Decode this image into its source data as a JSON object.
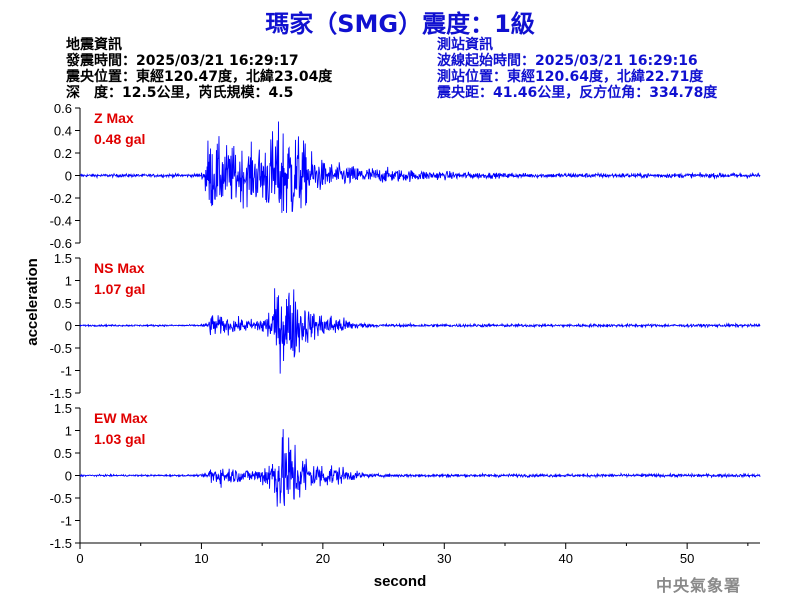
{
  "title": "瑪家（SMG）震度：1級",
  "quake_info": {
    "header": "地震資訊",
    "time": "發震時間：2025/03/21 16:29:17",
    "epicenter": "震央位置：東經120.47度，北緯23.04度",
    "depth_mag": "深　度：12.5公里，芮氏規模：4.5"
  },
  "station_info": {
    "header": "測站資訊",
    "wave_start": "波線起始時間：2025/03/21 16:29:16",
    "location": "測站位置：東經120.64度，北緯22.71度",
    "distance": "震央距：41.46公里，反方位角：334.78度"
  },
  "credit": "中央氣象署",
  "colors": {
    "title": "#1010d0",
    "trace": "#0000ff",
    "max_label": "#e00000",
    "axis": "#000000"
  },
  "chart_data": {
    "type": "line",
    "xlabel": "second",
    "ylabel": "acceleration",
    "xlim": [
      0,
      56
    ],
    "xticks": [
      0,
      10,
      20,
      30,
      40,
      50
    ],
    "panels": [
      {
        "name": "Z",
        "max_label": "Z Max",
        "max_value": "0.48 gal",
        "peak": 0.48,
        "ylim": [
          -0.6,
          0.6
        ],
        "yticks": [
          -0.6,
          -0.4,
          -0.2,
          0,
          0.2,
          0.4,
          0.6
        ],
        "ytick_labels": [
          "-0.6",
          "-0.4",
          "-0.2",
          "0",
          "0.2",
          "0.4",
          "0.6"
        ]
      },
      {
        "name": "NS",
        "max_label": "NS Max",
        "max_value": "1.07 gal",
        "peak": 1.07,
        "ylim": [
          -1.5,
          1.5
        ],
        "yticks": [
          -1.5,
          -1,
          -0.5,
          0,
          0.5,
          1,
          1.5
        ],
        "ytick_labels": [
          "-1.5",
          "-1",
          "-0.5",
          "0",
          "0.5",
          "1",
          "1.5"
        ]
      },
      {
        "name": "EW",
        "max_label": "EW Max",
        "max_value": "1.03 gal",
        "peak": 1.03,
        "ylim": [
          -1.5,
          1.5
        ],
        "yticks": [
          -1.5,
          -1,
          -0.5,
          0,
          0.5,
          1,
          1.5
        ],
        "ytick_labels": [
          "-1.5",
          "-1",
          "-0.5",
          "0",
          "0.5",
          "1",
          "1.5"
        ]
      }
    ]
  }
}
